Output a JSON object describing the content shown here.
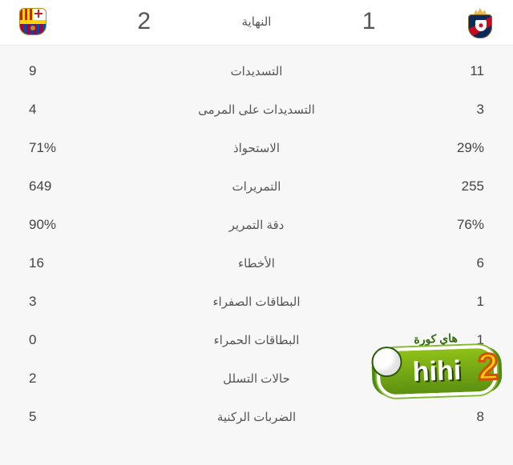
{
  "header": {
    "home_score": "2",
    "away_score": "1",
    "status": "النهاية"
  },
  "stats": [
    {
      "home": "9",
      "label": "التسديدات",
      "away": "11"
    },
    {
      "home": "4",
      "label": "التسديدات على المرمى",
      "away": "3"
    },
    {
      "home": "71%",
      "label": "الاستحواذ",
      "away": "29%"
    },
    {
      "home": "649",
      "label": "التمريرات",
      "away": "255"
    },
    {
      "home": "90%",
      "label": "دقة التمرير",
      "away": "76%"
    },
    {
      "home": "16",
      "label": "الأخطاء",
      "away": "6"
    },
    {
      "home": "3",
      "label": "البطاقات الصفراء",
      "away": "1"
    },
    {
      "home": "0",
      "label": "البطاقات الحمراء",
      "away": "1"
    },
    {
      "home": "2",
      "label": "حالات التسلل",
      "away": "2"
    },
    {
      "home": "5",
      "label": "الضربات الركنية",
      "away": "8"
    }
  ],
  "watermark": {
    "text": "hihi",
    "number": "2",
    "ar": "هاي كورة"
  }
}
